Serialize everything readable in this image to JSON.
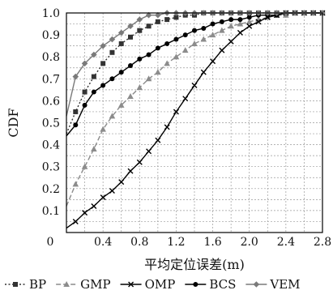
{
  "chart_data": {
    "type": "line",
    "title": "",
    "xlabel": "平均定位误差(m)",
    "ylabel": "CDF",
    "xlim": [
      0,
      2.8
    ],
    "ylim": [
      0,
      1.0
    ],
    "xticks": [
      0,
      0.4,
      0.8,
      1.2,
      1.6,
      2.0,
      2.4,
      2.8
    ],
    "xtick_labels": [
      "0",
      "0.4",
      "0.8",
      "1.2",
      "1.6",
      "2.0",
      "2.4",
      "2.8"
    ],
    "yticks": [
      0.1,
      0.2,
      0.3,
      0.4,
      0.5,
      0.6,
      0.7,
      0.8,
      0.9,
      1.0
    ],
    "ytick_labels": [
      "0.1",
      "0.2",
      "0.3",
      "0.4",
      "0.5",
      "0.6",
      "0.7",
      "0.8",
      "0.9",
      "1.0"
    ],
    "grid": true,
    "legend_position": "bottom",
    "series": [
      {
        "name": "BP",
        "color": "#333333",
        "line_style": "dotted",
        "marker": "square",
        "x": [
          0,
          0.1,
          0.2,
          0.3,
          0.4,
          0.5,
          0.6,
          0.7,
          0.8,
          0.9,
          1.0,
          1.1,
          1.2,
          1.3,
          1.4,
          1.5,
          1.6,
          1.7,
          1.8,
          1.9,
          2.0,
          2.1,
          2.2,
          2.3,
          2.4,
          2.5,
          2.6,
          2.7,
          2.8
        ],
        "y": [
          0.45,
          0.55,
          0.64,
          0.71,
          0.77,
          0.82,
          0.86,
          0.89,
          0.92,
          0.94,
          0.96,
          0.97,
          0.98,
          0.99,
          0.99,
          1.0,
          1.0,
          1.0,
          1.0,
          1.0,
          1.0,
          1.0,
          1.0,
          1.0,
          1.0,
          1.0,
          1.0,
          1.0,
          1.0
        ]
      },
      {
        "name": "GMP",
        "color": "#8c8c8c",
        "line_style": "dashed",
        "marker": "triangle",
        "x": [
          0,
          0.1,
          0.2,
          0.3,
          0.4,
          0.5,
          0.6,
          0.7,
          0.8,
          0.9,
          1.0,
          1.1,
          1.2,
          1.3,
          1.4,
          1.5,
          1.6,
          1.7,
          1.8,
          1.9,
          2.0,
          2.1,
          2.2,
          2.3,
          2.4,
          2.5,
          2.6,
          2.7,
          2.8
        ],
        "y": [
          0.12,
          0.22,
          0.3,
          0.38,
          0.47,
          0.53,
          0.58,
          0.62,
          0.66,
          0.7,
          0.73,
          0.77,
          0.8,
          0.83,
          0.86,
          0.88,
          0.9,
          0.92,
          0.94,
          0.95,
          0.96,
          0.97,
          0.98,
          0.99,
          0.99,
          1.0,
          1.0,
          1.0,
          1.0
        ]
      },
      {
        "name": "OMP",
        "color": "#000000",
        "line_style": "solid",
        "marker": "x",
        "x": [
          0,
          0.1,
          0.2,
          0.3,
          0.4,
          0.5,
          0.6,
          0.7,
          0.8,
          0.9,
          1.0,
          1.1,
          1.2,
          1.3,
          1.4,
          1.5,
          1.6,
          1.7,
          1.8,
          1.9,
          2.0,
          2.1,
          2.2,
          2.3,
          2.4,
          2.5,
          2.6,
          2.7,
          2.8
        ],
        "y": [
          0.02,
          0.05,
          0.09,
          0.12,
          0.16,
          0.19,
          0.23,
          0.28,
          0.32,
          0.37,
          0.42,
          0.48,
          0.55,
          0.61,
          0.67,
          0.73,
          0.78,
          0.83,
          0.87,
          0.91,
          0.94,
          0.96,
          0.98,
          0.99,
          1.0,
          1.0,
          1.0,
          1.0,
          1.0
        ]
      },
      {
        "name": "BCS",
        "color": "#000000",
        "line_style": "solid",
        "marker": "circle",
        "x": [
          0,
          0.1,
          0.2,
          0.3,
          0.4,
          0.5,
          0.6,
          0.7,
          0.8,
          0.9,
          1.0,
          1.1,
          1.2,
          1.3,
          1.4,
          1.5,
          1.6,
          1.7,
          1.8,
          1.9,
          2.0,
          2.1,
          2.2,
          2.3,
          2.4,
          2.5,
          2.6,
          2.7,
          2.8
        ],
        "y": [
          0.44,
          0.49,
          0.58,
          0.64,
          0.67,
          0.7,
          0.73,
          0.76,
          0.79,
          0.81,
          0.84,
          0.86,
          0.88,
          0.9,
          0.92,
          0.93,
          0.95,
          0.96,
          0.97,
          0.97,
          0.98,
          0.99,
          0.99,
          0.99,
          1.0,
          1.0,
          1.0,
          1.0,
          1.0
        ]
      },
      {
        "name": "VEM",
        "color": "#7a7a7a",
        "line_style": "solid",
        "marker": "diamond",
        "x": [
          0,
          0.1,
          0.2,
          0.3,
          0.4,
          0.5,
          0.6,
          0.7,
          0.8,
          0.9,
          1.0,
          1.1,
          1.2,
          1.3,
          1.4,
          1.5,
          1.6,
          1.7,
          1.8,
          1.9,
          2.0,
          2.1,
          2.2,
          2.3,
          2.4,
          2.5,
          2.6,
          2.7,
          2.8
        ],
        "y": [
          0.53,
          0.71,
          0.77,
          0.81,
          0.85,
          0.88,
          0.91,
          0.94,
          0.97,
          0.99,
          0.99,
          1.0,
          1.0,
          1.0,
          1.0,
          1.0,
          1.0,
          1.0,
          1.0,
          1.0,
          1.0,
          1.0,
          1.0,
          1.0,
          1.0,
          1.0,
          1.0,
          1.0,
          1.0
        ]
      }
    ]
  }
}
